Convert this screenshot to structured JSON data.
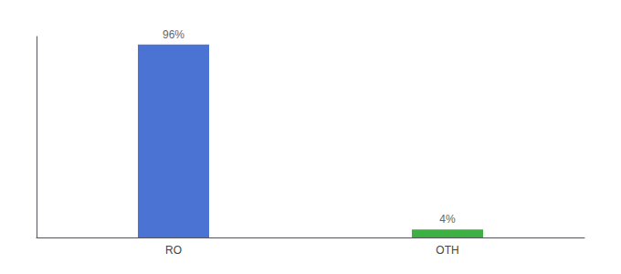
{
  "chart_data": {
    "type": "bar",
    "categories": [
      "RO",
      "OTH"
    ],
    "values": [
      96,
      4
    ],
    "value_labels": [
      "96%",
      "4%"
    ],
    "colors": [
      "#4a73d4",
      "#3cb043"
    ],
    "ylim": [
      0,
      100
    ],
    "grid": false,
    "tick_labels": "x",
    "data_labels": true
  }
}
